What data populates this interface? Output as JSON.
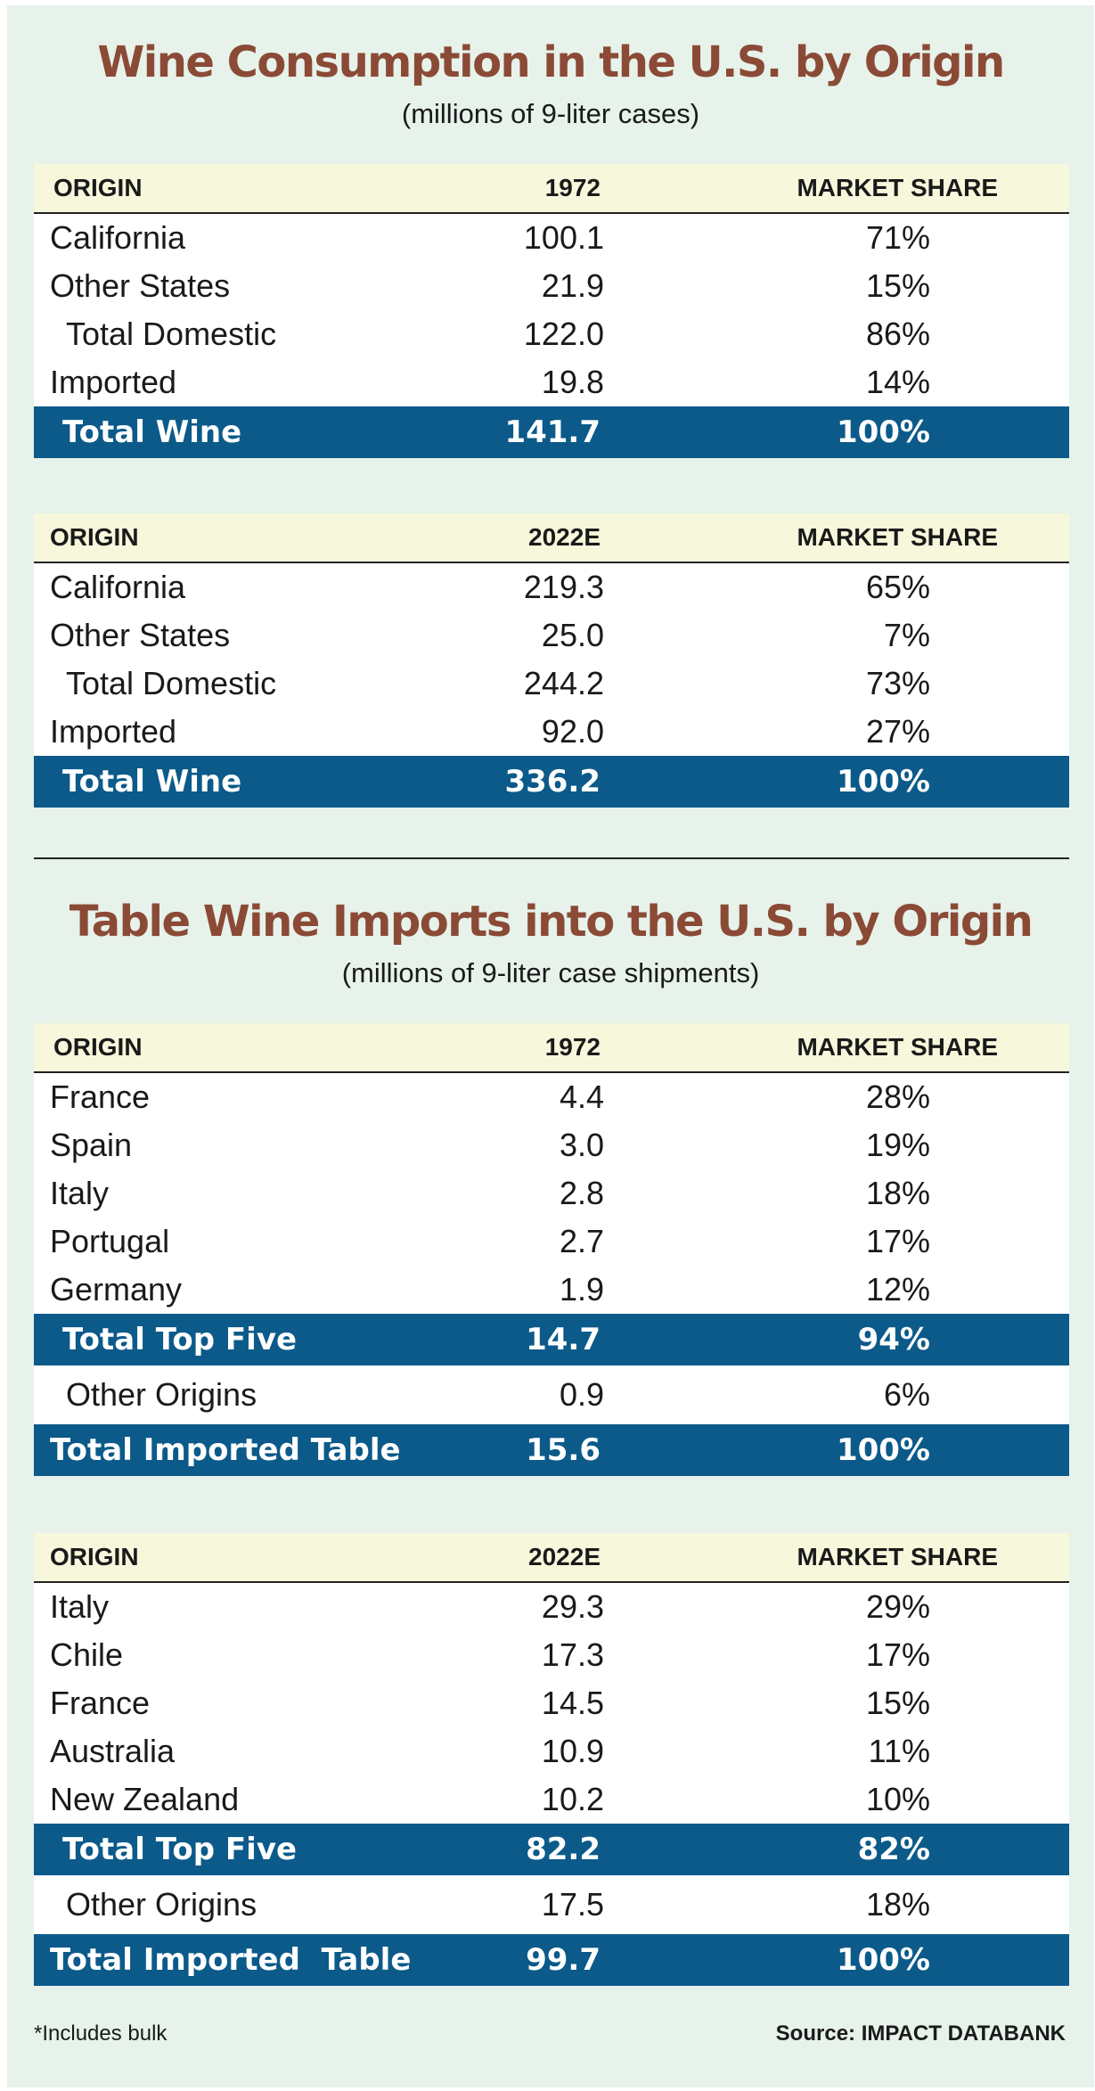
{
  "section1": {
    "title": "Wine Consumption in the U.S. by Origin",
    "subtitle": "(millions of 9-liter cases)",
    "table1": {
      "header": [
        "ORIGIN",
        "1972",
        "MARKET SHARE"
      ],
      "rows": [
        [
          "California",
          "100.1",
          "71%"
        ],
        [
          "Other States",
          "21.9",
          "15%"
        ],
        [
          "Total Domestic",
          "122.0",
          "86%"
        ],
        [
          "Imported",
          "19.8",
          "14%"
        ]
      ],
      "total": [
        "Total Wine",
        "141.7",
        "100%"
      ]
    },
    "table2": {
      "header": [
        "ORIGIN",
        "2022E",
        "MARKET SHARE"
      ],
      "rows": [
        [
          "California",
          "219.3",
          "65%"
        ],
        [
          "Other States",
          "25.0",
          "7%"
        ],
        [
          "Total Domestic",
          "244.2",
          "73%"
        ],
        [
          "Imported",
          "92.0",
          "27%"
        ]
      ],
      "total": [
        "Total Wine",
        "336.2",
        "100%"
      ]
    }
  },
  "section2": {
    "title": "Table Wine Imports into the U.S. by Origin",
    "subtitle": "(millions of 9-liter case shipments)",
    "table1": {
      "header": [
        "ORIGIN",
        "1972",
        "MARKET SHARE"
      ],
      "rows": [
        [
          "France",
          "4.4",
          "28%"
        ],
        [
          "Spain",
          "3.0",
          "19%"
        ],
        [
          "Italy",
          "2.8",
          "18%"
        ],
        [
          "Portugal",
          "2.7",
          "17%"
        ],
        [
          "Germany",
          "1.9",
          "12%"
        ]
      ],
      "top_five": [
        "Total Top Five",
        "14.7",
        "94%"
      ],
      "other": [
        "Other Origins",
        "0.9",
        "6%"
      ],
      "total": [
        "Total Imported Table",
        "15.6",
        "100%"
      ]
    },
    "table2": {
      "header": [
        "ORIGIN",
        "2022E",
        "MARKET SHARE"
      ],
      "rows": [
        [
          "Italy",
          "29.3",
          "29%"
        ],
        [
          "Chile",
          "17.3",
          "17%"
        ],
        [
          "France",
          "14.5",
          "15%"
        ],
        [
          "Australia",
          "10.9",
          "11%"
        ],
        [
          "New Zealand",
          "10.2",
          "10%"
        ]
      ],
      "top_five": [
        "Total Top Five",
        "82.2",
        "82%"
      ],
      "other": [
        "Other Origins",
        "17.5",
        "18%"
      ],
      "total": [
        "Total Imported  Table",
        "99.7",
        "100%"
      ]
    }
  },
  "footer": {
    "note": "*Includes bulk",
    "source": "Source: IMPACT DATABANK"
  },
  "colors": {
    "background": "#e6f2ea",
    "title": "#8b4a36",
    "header_band": "#f7f7dc",
    "total_band": "#0b5a8a"
  }
}
